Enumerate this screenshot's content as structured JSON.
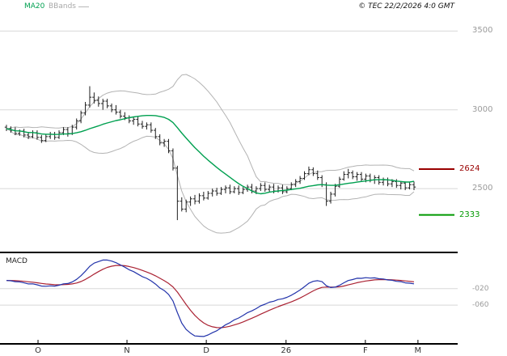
{
  "header": {
    "ma_label": "MA20",
    "bbands_label": "BBands",
    "copyright": "© TEC 22/2/2026 4:0 GMT"
  },
  "colors": {
    "ma": "#00a050",
    "bbands": "#b3b3b3",
    "bars": "#1f1f1f",
    "grid": "#d8d8d8",
    "separator": "#000000",
    "macd_line": "#2233aa",
    "macd_signal": "#aa2233",
    "axis_text": "#9a9a9a"
  },
  "price_axis": {
    "ticks": [
      {
        "label": "3500",
        "value": 3500
      },
      {
        "label": "3000",
        "value": 3000
      },
      {
        "label": "2500",
        "value": 2500
      }
    ],
    "levels": [
      {
        "label": "2624",
        "value": 2624,
        "color": "#990000"
      },
      {
        "label": "2333",
        "value": 2333,
        "color": "#009900"
      }
    ]
  },
  "x_axis": {
    "months": [
      {
        "label": "O",
        "index": 7.2
      },
      {
        "label": "N",
        "index": 27.5
      },
      {
        "label": "D",
        "index": 45.6
      },
      {
        "label": "26",
        "index": 63.8
      },
      {
        "label": "F",
        "index": 81.9
      },
      {
        "label": "M",
        "index": 93.9
      }
    ]
  },
  "macd_panel": {
    "label": "MACD",
    "ticks": [
      {
        "label": "-020",
        "value": -20
      },
      {
        "label": "-060",
        "value": -60
      }
    ]
  },
  "chart_data": {
    "type": "candlestick",
    "title": "",
    "x_labels": [
      "O",
      "N",
      "D",
      "26",
      "F",
      "M"
    ],
    "price_ylim": [
      2100,
      3620
    ],
    "price_gridlines": [
      3500,
      3000,
      2500
    ],
    "levels": [
      2624,
      2333
    ],
    "macd_ylim": [
      -150,
      60
    ],
    "macd_gridlines": [
      -20,
      -60
    ],
    "overlays": [
      "MA20",
      "BBands upper (MA20+2sd)",
      "BBands lower (MA20-2sd)"
    ],
    "lower_panel": [
      "MACD (EMA12-EMA26)",
      "signal (EMA9 of MACD)"
    ],
    "ohlc": [
      [
        2890,
        2905,
        2865,
        2880
      ],
      [
        2880,
        2895,
        2855,
        2870
      ],
      [
        2870,
        2890,
        2840,
        2850
      ],
      [
        2850,
        2875,
        2835,
        2865
      ],
      [
        2865,
        2880,
        2825,
        2840
      ],
      [
        2840,
        2860,
        2815,
        2830
      ],
      [
        2830,
        2870,
        2820,
        2855
      ],
      [
        2855,
        2870,
        2810,
        2825
      ],
      [
        2825,
        2840,
        2790,
        2805
      ],
      [
        2805,
        2845,
        2795,
        2830
      ],
      [
        2830,
        2860,
        2815,
        2845
      ],
      [
        2845,
        2860,
        2810,
        2825
      ],
      [
        2825,
        2870,
        2815,
        2855
      ],
      [
        2855,
        2890,
        2840,
        2875
      ],
      [
        2875,
        2890,
        2830,
        2850
      ],
      [
        2850,
        2905,
        2840,
        2890
      ],
      [
        2890,
        2945,
        2875,
        2930
      ],
      [
        2930,
        2995,
        2915,
        2980
      ],
      [
        2980,
        3050,
        2965,
        3030
      ],
      [
        3030,
        3150,
        3015,
        3080
      ],
      [
        3080,
        3110,
        3040,
        3060
      ],
      [
        3060,
        3085,
        3020,
        3040
      ],
      [
        3040,
        3070,
        3000,
        3055
      ],
      [
        3055,
        3070,
        3010,
        3025
      ],
      [
        3025,
        3040,
        2985,
        3000
      ],
      [
        3000,
        3030,
        2970,
        2985
      ],
      [
        2985,
        3000,
        2945,
        2960
      ],
      [
        2960,
        2985,
        2935,
        2950
      ],
      [
        2950,
        2965,
        2915,
        2930
      ],
      [
        2930,
        2955,
        2905,
        2940
      ],
      [
        2940,
        2955,
        2895,
        2910
      ],
      [
        2910,
        2930,
        2880,
        2895
      ],
      [
        2895,
        2920,
        2875,
        2905
      ],
      [
        2905,
        2920,
        2855,
        2870
      ],
      [
        2870,
        2885,
        2815,
        2830
      ],
      [
        2830,
        2845,
        2775,
        2790
      ],
      [
        2790,
        2815,
        2765,
        2800
      ],
      [
        2800,
        2815,
        2725,
        2740
      ],
      [
        2740,
        2755,
        2615,
        2630
      ],
      [
        2630,
        2645,
        2300,
        2420
      ],
      [
        2420,
        2445,
        2355,
        2370
      ],
      [
        2370,
        2430,
        2350,
        2415
      ],
      [
        2415,
        2450,
        2390,
        2435
      ],
      [
        2435,
        2460,
        2400,
        2420
      ],
      [
        2420,
        2470,
        2405,
        2455
      ],
      [
        2455,
        2480,
        2425,
        2440
      ],
      [
        2440,
        2485,
        2430,
        2470
      ],
      [
        2470,
        2500,
        2450,
        2485
      ],
      [
        2485,
        2505,
        2455,
        2470
      ],
      [
        2470,
        2510,
        2460,
        2495
      ],
      [
        2495,
        2520,
        2470,
        2505
      ],
      [
        2505,
        2525,
        2465,
        2480
      ],
      [
        2480,
        2515,
        2470,
        2500
      ],
      [
        2500,
        2520,
        2460,
        2475
      ],
      [
        2475,
        2510,
        2465,
        2495
      ],
      [
        2495,
        2525,
        2480,
        2510
      ],
      [
        2510,
        2530,
        2470,
        2485
      ],
      [
        2485,
        2515,
        2465,
        2500
      ],
      [
        2500,
        2535,
        2485,
        2520
      ],
      [
        2520,
        2540,
        2480,
        2495
      ],
      [
        2495,
        2525,
        2475,
        2510
      ],
      [
        2510,
        2530,
        2470,
        2485
      ],
      [
        2485,
        2520,
        2475,
        2505
      ],
      [
        2505,
        2525,
        2465,
        2480
      ],
      [
        2480,
        2515,
        2470,
        2500
      ],
      [
        2500,
        2540,
        2490,
        2525
      ],
      [
        2525,
        2560,
        2510,
        2545
      ],
      [
        2545,
        2580,
        2530,
        2565
      ],
      [
        2565,
        2610,
        2555,
        2595
      ],
      [
        2595,
        2640,
        2585,
        2620
      ],
      [
        2620,
        2635,
        2580,
        2595
      ],
      [
        2595,
        2615,
        2555,
        2570
      ],
      [
        2570,
        2585,
        2510,
        2525
      ],
      [
        2525,
        2540,
        2390,
        2420
      ],
      [
        2420,
        2480,
        2405,
        2465
      ],
      [
        2465,
        2530,
        2450,
        2515
      ],
      [
        2515,
        2575,
        2505,
        2560
      ],
      [
        2560,
        2610,
        2550,
        2590
      ],
      [
        2590,
        2625,
        2565,
        2600
      ],
      [
        2600,
        2615,
        2560,
        2575
      ],
      [
        2575,
        2605,
        2550,
        2590
      ],
      [
        2590,
        2605,
        2545,
        2560
      ],
      [
        2560,
        2595,
        2540,
        2580
      ],
      [
        2580,
        2595,
        2540,
        2555
      ],
      [
        2555,
        2585,
        2530,
        2570
      ],
      [
        2570,
        2585,
        2525,
        2540
      ],
      [
        2540,
        2570,
        2520,
        2555
      ],
      [
        2555,
        2570,
        2515,
        2530
      ],
      [
        2530,
        2560,
        2510,
        2545
      ],
      [
        2545,
        2560,
        2505,
        2520
      ],
      [
        2520,
        2545,
        2495,
        2535
      ],
      [
        2535,
        2545,
        2490,
        2505
      ],
      [
        2505,
        2540,
        2495,
        2525
      ],
      [
        2525,
        2545,
        2490,
        2510
      ]
    ]
  }
}
